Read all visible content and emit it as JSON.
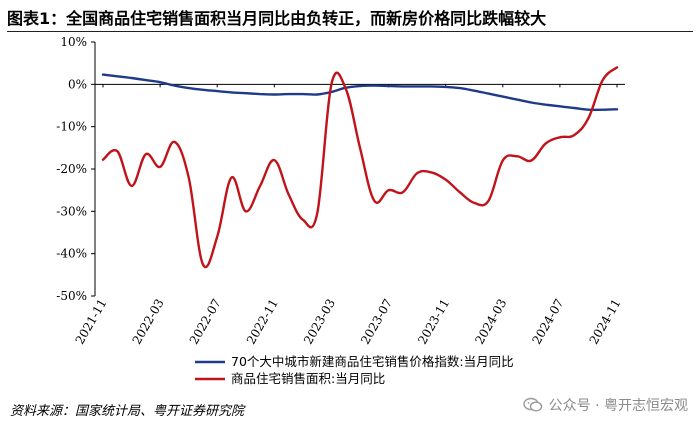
{
  "page": {
    "figure_title": "图表1：全国商品住宅销售面积当月同比由负转正，而新房价格同比跌幅较大",
    "source": "资料来源：国家统计局、粤开证券研究院",
    "watermark": "公众号 · 粤开志恒宏观",
    "colors": {
      "price_series": "#1f3a8a",
      "area_series": "#c0131a",
      "axis": "#000000"
    }
  },
  "chart_data": {
    "type": "line",
    "title": "",
    "xlabel": "",
    "ylabel": "",
    "ylim": [
      -50,
      10
    ],
    "yticks": [
      10,
      0,
      -10,
      -20,
      -30,
      -40,
      -50
    ],
    "ytick_labels": [
      "10%",
      "0%",
      "-10%",
      "-20%",
      "-30%",
      "-40%",
      "-50%"
    ],
    "x": [
      "2021-11",
      "2021-12",
      "2022-01",
      "2022-02",
      "2022-03",
      "2022-04",
      "2022-05",
      "2022-06",
      "2022-07",
      "2022-08",
      "2022-09",
      "2022-10",
      "2022-11",
      "2022-12",
      "2023-01",
      "2023-02",
      "2023-03",
      "2023-04",
      "2023-05",
      "2023-06",
      "2023-07",
      "2023-08",
      "2023-09",
      "2023-10",
      "2023-11",
      "2023-12",
      "2024-01",
      "2024-02",
      "2024-03",
      "2024-04",
      "2024-05",
      "2024-06",
      "2024-07",
      "2024-08",
      "2024-09",
      "2024-10",
      "2024-11"
    ],
    "xtick_labels": [
      "2021-11",
      "2022-03",
      "2022-07",
      "2022-11",
      "2023-03",
      "2023-07",
      "2023-11",
      "2024-03",
      "2024-07",
      "2024-11"
    ],
    "legend_position": "bottom",
    "series": [
      {
        "name": "70个大中城市新建商品住宅销售价格指数:当月同比",
        "color": "#1f3a8a",
        "values": [
          2.3,
          1.9,
          1.5,
          1.0,
          0.5,
          -0.3,
          -0.9,
          -1.3,
          -1.6,
          -1.9,
          -2.1,
          -2.3,
          -2.4,
          -2.3,
          -2.3,
          -2.4,
          -1.8,
          -0.8,
          -0.4,
          -0.3,
          -0.4,
          -0.5,
          -0.5,
          -0.5,
          -0.6,
          -0.9,
          -1.5,
          -2.2,
          -2.9,
          -3.6,
          -4.3,
          -4.8,
          -5.2,
          -5.6,
          -6.0,
          -6.0,
          -5.9
        ]
      },
      {
        "name": "商品住宅销售面积:当月同比",
        "color": "#c0131a",
        "values": [
          -17.8,
          -15.8,
          -24.0,
          -16.5,
          -19.5,
          -13.6,
          -22.0,
          -42.5,
          -36.0,
          -22.0,
          -30.0,
          -24.0,
          -17.9,
          -26.0,
          -32.0,
          -30.5,
          0.0,
          -1.0,
          -15.0,
          -27.5,
          -25.0,
          -25.5,
          -21.0,
          -20.8,
          -22.5,
          -25.5,
          -28.0,
          -27.5,
          -18.0,
          -17.0,
          -18.0,
          -14.0,
          -12.5,
          -12.0,
          -8.0,
          1.0,
          4.0
        ]
      }
    ]
  }
}
